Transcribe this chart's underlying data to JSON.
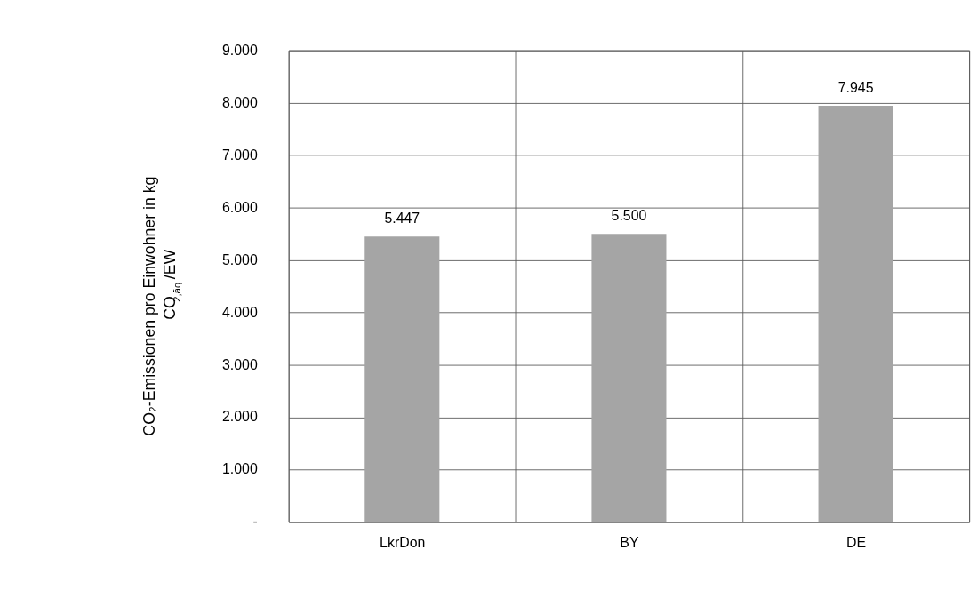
{
  "chart_data": {
    "type": "bar",
    "ylabel": "CO₂-Emissionen pro Einwohner in kg CO$_{2,äq}$/EW",
    "categories": [
      "LkrDon",
      "BY",
      "DE"
    ],
    "values": [
      5447,
      5500,
      7945
    ],
    "color": "#a5a5a5",
    "value_labels": [
      "5.447",
      "5.500",
      "7.945"
    ],
    "ylim": [
      0,
      9000
    ],
    "yticks": [
      {
        "value": 0,
        "label": "-"
      },
      {
        "value": 1000,
        "label": "1.000"
      },
      {
        "value": 2000,
        "label": "2.000"
      },
      {
        "value": 3000,
        "label": "3.000"
      },
      {
        "value": 4000,
        "label": "4.000"
      },
      {
        "value": 5000,
        "label": "5.000"
      },
      {
        "value": 6000,
        "label": "6.000"
      },
      {
        "value": 7000,
        "label": "7.000"
      },
      {
        "value": 8000,
        "label": "8.000"
      },
      {
        "value": 9000,
        "label": "9.000"
      }
    ],
    "grid": true
  }
}
